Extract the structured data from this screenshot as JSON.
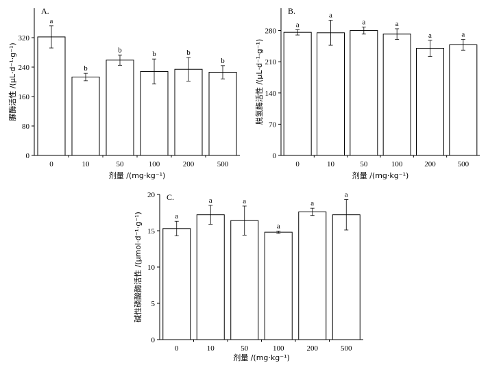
{
  "chart_data": [
    {
      "type": "bar",
      "panel": "A.",
      "categories": [
        "0",
        "10",
        "50",
        "100",
        "200",
        "500"
      ],
      "values": [
        322,
        213,
        259,
        228,
        234,
        226
      ],
      "errors": [
        30,
        10,
        14,
        34,
        32,
        18
      ],
      "significance": [
        "a",
        "b",
        "b",
        "b",
        "b",
        "b"
      ],
      "yticks": [
        "0",
        "80",
        "160",
        "240",
        "320"
      ],
      "ylim": [
        0,
        400
      ],
      "xlabel": "剂量 /(mg·kg⁻¹)",
      "ylabel": "脲酶活性 /(μL·d⁻¹·g⁻¹)"
    },
    {
      "type": "bar",
      "panel": "B.",
      "categories": [
        "0",
        "10",
        "50",
        "100",
        "200",
        "500"
      ],
      "values": [
        276,
        275,
        280,
        272,
        240,
        248
      ],
      "errors": [
        6,
        28,
        8,
        12,
        18,
        12
      ],
      "significance": [
        "a",
        "a",
        "a",
        "a",
        "a",
        "a"
      ],
      "yticks": [
        "0",
        "70",
        "140",
        "210",
        "280"
      ],
      "ylim": [
        0,
        330
      ],
      "xlabel": "剂量 /(mg·kg⁻¹)",
      "ylabel": "脱氢酶活性 /(μL·d⁻¹·g⁻¹)"
    },
    {
      "type": "bar",
      "panel": "C.",
      "categories": [
        "0",
        "10",
        "50",
        "100",
        "200",
        "500"
      ],
      "values": [
        15.3,
        17.2,
        16.4,
        14.8,
        17.6,
        17.2
      ],
      "errors": [
        1.0,
        1.3,
        2.0,
        0.15,
        0.5,
        2.1
      ],
      "significance": [
        "a",
        "a",
        "a",
        "a",
        "a",
        "a"
      ],
      "yticks": [
        "0",
        "5",
        "10",
        "15",
        "20"
      ],
      "ylim": [
        0,
        20
      ],
      "xlabel": "剂量 /(mg·kg⁻¹)",
      "ylabel": "碱性磷酸酶活性 /(μmol·d⁻¹·g⁻¹)"
    }
  ]
}
